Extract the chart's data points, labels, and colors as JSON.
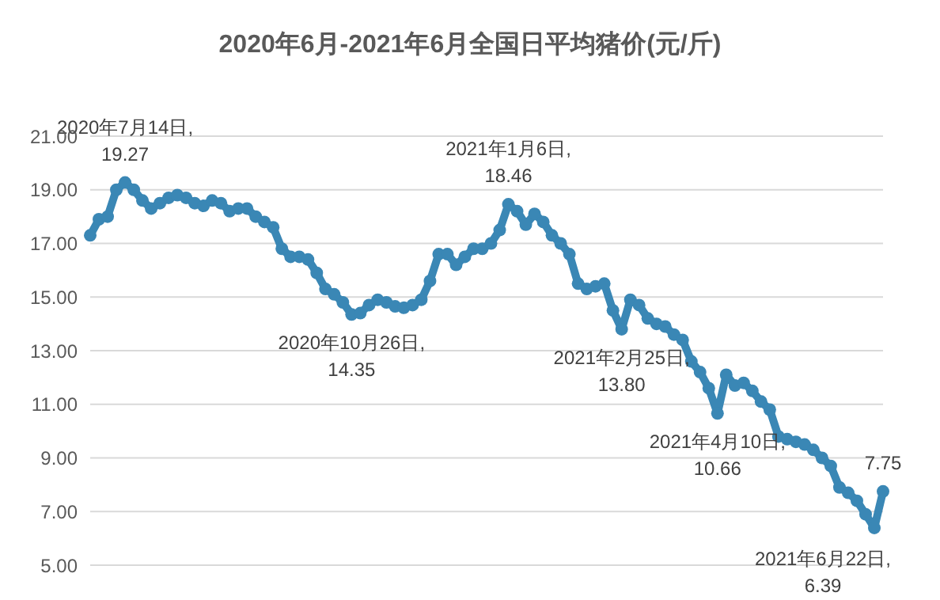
{
  "chart_data": {
    "type": "line",
    "title": "2020年6月-2021年6月全国日平均猪价(元/斤)",
    "categories": [
      null,
      null,
      null,
      null,
      null,
      null,
      null,
      null,
      null,
      null,
      null,
      null,
      null,
      null,
      null,
      null,
      null,
      null,
      null,
      null,
      null,
      null,
      null,
      null,
      null,
      null,
      null,
      null,
      null,
      null,
      null,
      null,
      null,
      null,
      null,
      null,
      null,
      null,
      null,
      null,
      null,
      null,
      null,
      null,
      null,
      null,
      null,
      null,
      null,
      null,
      null,
      null,
      null,
      null,
      null,
      null,
      null,
      null,
      null,
      null,
      null,
      null,
      null,
      null,
      null,
      null,
      null,
      null,
      null,
      null,
      null,
      null,
      null,
      null,
      null,
      null,
      null,
      null,
      null,
      null,
      null,
      null,
      null,
      null,
      null,
      null,
      null,
      null,
      null,
      null,
      null,
      null
    ],
    "series": [
      {
        "color": "#3a87b5",
        "values": [
          17.3,
          17.9,
          18.0,
          19.0,
          19.27,
          19.0,
          18.6,
          18.3,
          18.5,
          18.7,
          18.8,
          18.7,
          18.5,
          18.4,
          18.6,
          18.5,
          18.2,
          18.3,
          18.3,
          18.0,
          17.8,
          17.6,
          16.8,
          16.5,
          16.5,
          16.4,
          15.9,
          15.3,
          15.1,
          14.8,
          14.35,
          14.4,
          14.7,
          14.9,
          14.8,
          14.65,
          14.6,
          14.7,
          14.9,
          15.6,
          16.6,
          16.6,
          16.2,
          16.5,
          16.8,
          16.8,
          17.0,
          17.5,
          18.46,
          18.2,
          17.7,
          18.1,
          17.8,
          17.3,
          17.0,
          16.6,
          15.5,
          15.3,
          15.4,
          15.5,
          14.5,
          13.8,
          14.9,
          14.7,
          14.2,
          14.0,
          13.9,
          13.6,
          13.4,
          12.6,
          12.2,
          11.6,
          10.66,
          12.1,
          11.7,
          11.8,
          11.5,
          11.1,
          10.8,
          9.8,
          9.7,
          9.6,
          9.5,
          9.3,
          9.0,
          8.7,
          7.9,
          7.7,
          7.4,
          6.9,
          6.39,
          7.75
        ]
      }
    ],
    "ylim": [
      5,
      21
    ],
    "yticks": [
      {
        "value": 5,
        "label": "5.00"
      },
      {
        "value": 7,
        "label": "7.00"
      },
      {
        "value": 9,
        "label": "9.00"
      },
      {
        "value": 11,
        "label": "11.00"
      },
      {
        "value": 13,
        "label": "13.00"
      },
      {
        "value": 15,
        "label": "15.00"
      },
      {
        "value": 17,
        "label": "17.00"
      },
      {
        "value": 19,
        "label": "19.00"
      },
      {
        "value": 21,
        "label": "21.00"
      }
    ],
    "tick_labels": "y",
    "grid": "y",
    "marker": "circle",
    "annotations": [
      {
        "text": "2020年7月14日,\n19.27",
        "y": 19.27
      },
      {
        "text": "2020年10月26日,\n14.35",
        "y": 14.35
      },
      {
        "text": "2021年1月6日,\n18.46",
        "y": 18.46
      },
      {
        "text": "2021年2月25日,\n13.80",
        "y": 13.8
      },
      {
        "text": "2021年4月10日,\n10.66",
        "y": 10.66
      },
      "2021年6月22日,\n6.39",
      {
        "text": "7.75",
        "y": 7.75
      }
    ]
  }
}
